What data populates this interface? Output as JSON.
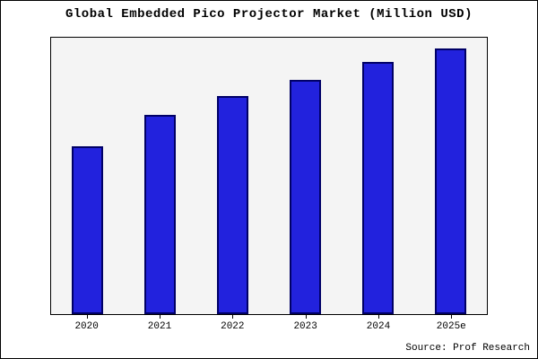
{
  "chart_data": {
    "type": "bar",
    "title": "Global Embedded Pico Projector Market (Million USD)",
    "categories": [
      "2020",
      "2021",
      "2022",
      "2023",
      "2024",
      "2025e"
    ],
    "values": [
      63,
      75,
      82,
      88,
      95,
      100
    ],
    "xlabel": "",
    "ylabel": "",
    "ylim": [
      0,
      104
    ],
    "y_axis_labels_visible": false,
    "grid": false,
    "legend": "none",
    "bar_fill_color": "#2222dd",
    "bar_border_color": "#000066",
    "plot_background_color": "#f4f4f4",
    "note": "no numeric y-axis shown; values are relative estimates with 2025e = 100"
  },
  "footer": {
    "source": "Source: Prof Research"
  }
}
